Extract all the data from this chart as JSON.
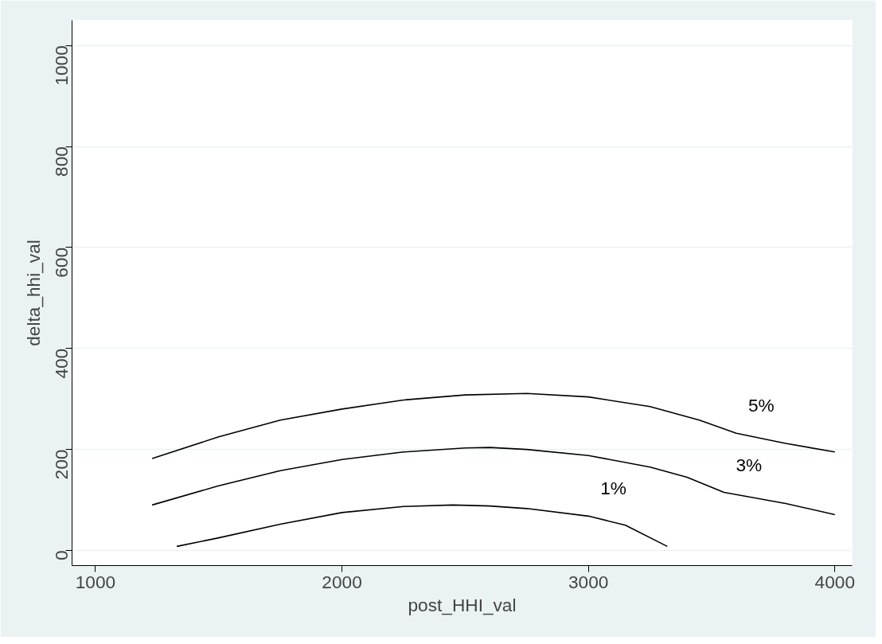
{
  "chart_data": {
    "type": "line",
    "xlabel": "post_HHI_val",
    "ylabel": "delta_hhi_val",
    "xlim": [
      905,
      4070
    ],
    "ylim": [
      -30,
      1050
    ],
    "xticks": [
      1000,
      2000,
      3000,
      4000
    ],
    "yticks": [
      0,
      200,
      400,
      600,
      800,
      1000
    ],
    "grid": "y",
    "legend": false,
    "marker": "none",
    "line_style": "solid",
    "series": [
      {
        "name": "5%",
        "color": "#000000",
        "x": [
          1230,
          1500,
          1750,
          2000,
          2250,
          2500,
          2750,
          3000,
          3250,
          3450,
          3600,
          3800,
          4000
        ],
        "values": [
          182,
          225,
          258,
          280,
          298,
          308,
          311,
          304,
          285,
          258,
          232,
          212,
          195
        ]
      },
      {
        "name": "3%",
        "color": "#000000",
        "x": [
          1230,
          1500,
          1750,
          2000,
          2250,
          2500,
          2600,
          2750,
          3000,
          3250,
          3400,
          3550,
          3800,
          4000
        ],
        "values": [
          90,
          128,
          158,
          180,
          195,
          203,
          204,
          200,
          188,
          165,
          145,
          115,
          93,
          71
        ]
      },
      {
        "name": "1%",
        "color": "#000000",
        "x": [
          1330,
          1500,
          1750,
          2000,
          2250,
          2450,
          2600,
          2750,
          3000,
          3150,
          3320
        ],
        "values": [
          8,
          25,
          52,
          75,
          87,
          90,
          88,
          83,
          68,
          50,
          8
        ]
      }
    ]
  }
}
